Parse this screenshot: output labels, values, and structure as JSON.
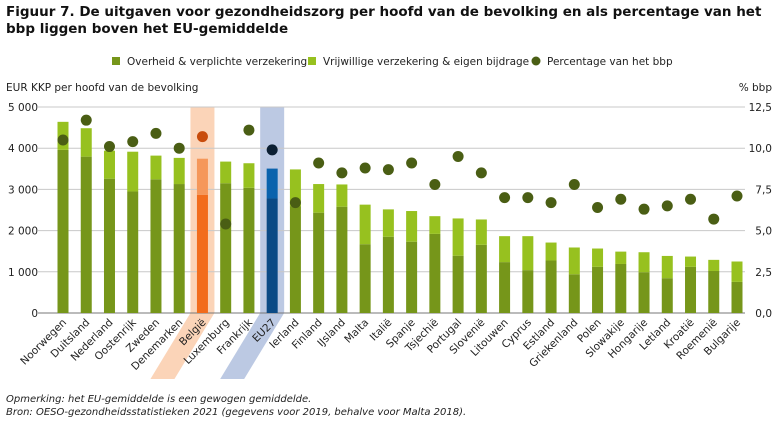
{
  "chart_data": {
    "type": "bar",
    "title": "Figuur 7. De uitgaven voor gezondheidszorg per hoofd van de bevolking en als percentage van het bbp liggen boven het EU-gemiddelde",
    "ylabel": "EUR KKP per hoofd van de bevolking",
    "y2label": "% bbp",
    "ylim": [
      0,
      5000
    ],
    "y2lim": [
      0,
      12.5
    ],
    "yticks": [
      "0",
      "1 000",
      "2 000",
      "3 000",
      "4 000",
      "5 000"
    ],
    "y2ticks": [
      "0,0",
      "2,5",
      "5,0",
      "7,5",
      "10,0",
      "12,5"
    ],
    "legend": [
      "Overheid & verplichte verzekering",
      "Vrijwillige verzekering & eigen bijdrage",
      "Percentage van het bbp"
    ],
    "legend_position": "top",
    "grid": true,
    "categories": [
      "Noorwegen",
      "Duitsland",
      "Nederland",
      "Oostenrijk",
      "Zweden",
      "Denemarken",
      "België",
      "Luxemburg",
      "Frankrijk",
      "EU27",
      "Ierland",
      "Finland",
      "IJsland",
      "Malta",
      "Italië",
      "Spanje",
      "Tsjechië",
      "Portugal",
      "Slovenië",
      "Litouwen",
      "Cyprus",
      "Estland",
      "Griekenland",
      "Polen",
      "Slowakije",
      "Hongarije",
      "Letland",
      "Kroatië",
      "Roemenië",
      "Bulgarije"
    ],
    "highlight": {
      "België": "belgium",
      "EU27": "eu"
    },
    "series": [
      {
        "name": "Overheid & verplichte verzekering",
        "values": [
          3960,
          3795,
          3260,
          2950,
          3245,
          3130,
          2870,
          3150,
          3040,
          2780,
          2595,
          2435,
          2580,
          1670,
          1850,
          1730,
          1920,
          1390,
          1655,
          1235,
          1040,
          1275,
          940,
          1120,
          1190,
          990,
          845,
          1120,
          1020,
          755
        ]
      },
      {
        "name": "Vrijwillige verzekering & eigen bijdrage",
        "values": [
          680,
          690,
          680,
          965,
          575,
          635,
          875,
          525,
          595,
          725,
          890,
          695,
          540,
          960,
          665,
          745,
          430,
          905,
          615,
          630,
          825,
          435,
          650,
          445,
          300,
          485,
          540,
          250,
          270,
          495
        ]
      },
      {
        "name": "Percentage van het bbp",
        "values": [
          10.5,
          11.7,
          10.1,
          10.4,
          10.9,
          10.0,
          10.7,
          5.4,
          11.1,
          9.9,
          6.7,
          9.1,
          8.5,
          8.8,
          8.7,
          9.1,
          7.8,
          9.5,
          8.5,
          7.0,
          7.0,
          6.7,
          7.8,
          6.4,
          6.9,
          6.3,
          6.5,
          6.9,
          5.7,
          7.1
        ]
      }
    ],
    "colors": {
      "public": "#76961a",
      "voluntary": "#97c11f",
      "pct": "#4a5e14",
      "belgium_public": "#f26c1c",
      "belgium_voluntary": "#f5975a",
      "belgium_pct": "#c84c0c",
      "belgium_band": "#fbd4b8",
      "eu_public": "#0b4a85",
      "eu_voluntary": "#0a63ad",
      "eu_pct": "#0b1f33",
      "eu_band": "#bcc9e3"
    }
  },
  "notes": {
    "line1": "Opmerking: het EU-gemiddelde is een gewogen gemiddelde.",
    "line2": "Bron: OESO-gezondheidsstatistieken 2021 (gegevens voor 2019, behalve voor Malta 2018)."
  }
}
